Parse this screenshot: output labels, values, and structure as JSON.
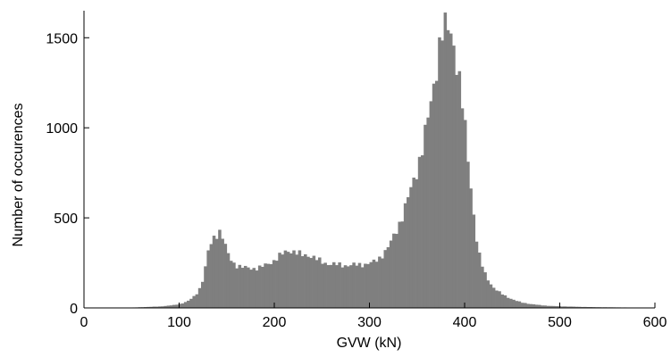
{
  "chart_data": {
    "type": "bar",
    "xlabel": "GVW (kN)",
    "ylabel": "Number of occurences",
    "xlim": [
      0,
      600
    ],
    "ylim": [
      0,
      1650
    ],
    "xticks": [
      0,
      100,
      200,
      300,
      400,
      500,
      600
    ],
    "yticks": [
      0,
      500,
      1000,
      1500
    ],
    "bin_width": 3,
    "bar_color": "#7f7f7f",
    "grid": false,
    "legend": "none",
    "anchors": [
      [
        0,
        0
      ],
      [
        45,
        1
      ],
      [
        60,
        4
      ],
      [
        80,
        8
      ],
      [
        95,
        16
      ],
      [
        103,
        25
      ],
      [
        110,
        40
      ],
      [
        116,
        65
      ],
      [
        120,
        90
      ],
      [
        124,
        140
      ],
      [
        127,
        210
      ],
      [
        130,
        300
      ],
      [
        133,
        350
      ],
      [
        136,
        385
      ],
      [
        139,
        410
      ],
      [
        142,
        430
      ],
      [
        145,
        405
      ],
      [
        148,
        350
      ],
      [
        151,
        300
      ],
      [
        154,
        270
      ],
      [
        157,
        250
      ],
      [
        160,
        238
      ],
      [
        165,
        228
      ],
      [
        170,
        222
      ],
      [
        175,
        220
      ],
      [
        180,
        221
      ],
      [
        185,
        224
      ],
      [
        190,
        235
      ],
      [
        195,
        250
      ],
      [
        200,
        265
      ],
      [
        205,
        285
      ],
      [
        210,
        305
      ],
      [
        215,
        320
      ],
      [
        220,
        315
      ],
      [
        225,
        300
      ],
      [
        230,
        292
      ],
      [
        235,
        295
      ],
      [
        240,
        285
      ],
      [
        245,
        268
      ],
      [
        250,
        255
      ],
      [
        255,
        248
      ],
      [
        260,
        243
      ],
      [
        270,
        238
      ],
      [
        280,
        237
      ],
      [
        290,
        240
      ],
      [
        300,
        248
      ],
      [
        305,
        255
      ],
      [
        310,
        275
      ],
      [
        315,
        305
      ],
      [
        320,
        340
      ],
      [
        325,
        390
      ],
      [
        330,
        450
      ],
      [
        335,
        520
      ],
      [
        340,
        600
      ],
      [
        345,
        680
      ],
      [
        350,
        770
      ],
      [
        355,
        880
      ],
      [
        360,
        1000
      ],
      [
        365,
        1150
      ],
      [
        370,
        1330
      ],
      [
        375,
        1520
      ],
      [
        378,
        1550
      ],
      [
        381,
        1530
      ],
      [
        384,
        1550
      ],
      [
        387,
        1510
      ],
      [
        390,
        1430
      ],
      [
        393,
        1320
      ],
      [
        396,
        1200
      ],
      [
        399,
        1060
      ],
      [
        402,
        900
      ],
      [
        405,
        750
      ],
      [
        408,
        600
      ],
      [
        411,
        450
      ],
      [
        414,
        320
      ],
      [
        418,
        240
      ],
      [
        422,
        180
      ],
      [
        426,
        145
      ],
      [
        430,
        115
      ],
      [
        435,
        92
      ],
      [
        440,
        74
      ],
      [
        445,
        60
      ],
      [
        450,
        48
      ],
      [
        455,
        38
      ],
      [
        460,
        30
      ],
      [
        470,
        21
      ],
      [
        480,
        15
      ],
      [
        490,
        11
      ],
      [
        500,
        9
      ],
      [
        520,
        6
      ],
      [
        540,
        4
      ],
      [
        560,
        3
      ],
      [
        580,
        2
      ],
      [
        600,
        1
      ]
    ]
  }
}
